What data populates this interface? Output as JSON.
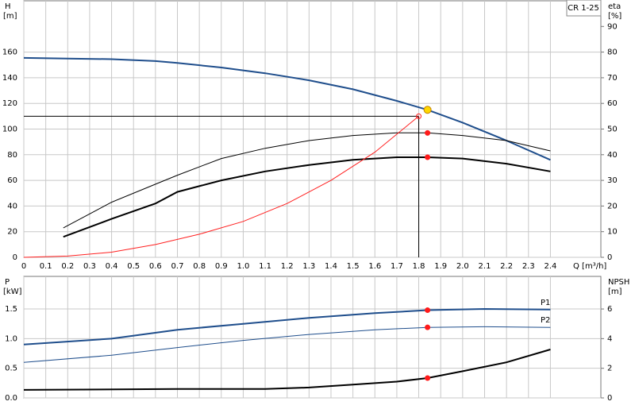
{
  "chart_data": [
    {
      "type": "line",
      "model_label": "CR 1-25",
      "ylabel": "H",
      "ylabel_unit": "[m]",
      "y2label": "eta",
      "y2label_unit": "[%]",
      "xlabel": "Q [m³/h]",
      "xlim": [
        0,
        2.63
      ],
      "xticks": [
        0,
        0.1,
        0.2,
        0.3,
        0.4,
        0.5,
        0.6,
        0.7,
        0.8,
        0.9,
        {
          "value": 1,
          "label": "1.0"
        },
        1.1,
        1.2,
        1.3,
        1.4,
        1.5,
        1.6,
        1.7,
        1.8,
        1.9,
        {
          "value": 2,
          "label": "2.0"
        },
        2.1,
        2.2,
        2.3,
        2.4
      ],
      "ylim": [
        0,
        200
      ],
      "yticks": [
        0,
        20,
        40,
        60,
        80,
        100,
        120,
        140,
        160
      ],
      "y2lim": [
        0,
        100
      ],
      "y2ticks": [
        0,
        10,
        20,
        30,
        40,
        50,
        60,
        70,
        80,
        90
      ],
      "grid": true,
      "series": [
        {
          "color": "#1f4e8c",
          "width": 2,
          "x": [
            0,
            0.2,
            0.4,
            0.6,
            0.7,
            0.9,
            1.1,
            1.3,
            1.5,
            1.7,
            1.84,
            2.0,
            2.2,
            2.4
          ],
          "values": [
            155.5,
            155,
            154.5,
            153,
            151.5,
            148,
            143.5,
            138,
            131,
            122,
            115,
            105,
            91,
            76
          ]
        },
        {
          "color": "#000000",
          "width": 1,
          "axis": "y2",
          "x": [
            0.18,
            0.4,
            0.6,
            0.7,
            0.9,
            1.1,
            1.3,
            1.5,
            1.7,
            1.84,
            2.0,
            2.2,
            2.4
          ],
          "values": [
            11.5,
            21.5,
            28.5,
            32,
            38.5,
            42.5,
            45.5,
            47.5,
            48.5,
            48.5,
            47.5,
            45.5,
            41.5
          ]
        },
        {
          "color": "#000000",
          "width": 2,
          "axis": "y2",
          "x": [
            0.18,
            0.4,
            0.6,
            0.7,
            0.9,
            1.1,
            1.3,
            1.5,
            1.7,
            1.84,
            2.0,
            2.2,
            2.4
          ],
          "values": [
            8,
            15,
            21,
            25.5,
            30,
            33.5,
            36,
            38,
            39,
            39,
            38.5,
            36.5,
            33.5
          ]
        },
        {
          "color": "#ff2020",
          "width": 1,
          "x": [
            0,
            0.2,
            0.4,
            0.6,
            0.8,
            1.0,
            1.2,
            1.4,
            1.6,
            1.8
          ],
          "values": [
            0,
            1,
            4,
            10,
            18,
            28,
            42,
            60,
            82,
            110
          ]
        }
      ],
      "crosshair": {
        "x": 1.8,
        "y": 110
      },
      "markers": [
        {
          "x": 1.84,
          "y": 115,
          "color": "#ffd700"
        },
        {
          "x": 1.84,
          "y": 48.5,
          "axis": "y2",
          "color": "#ff1a1a"
        },
        {
          "x": 1.84,
          "y": 39,
          "axis": "y2",
          "color": "#ff1a1a"
        }
      ]
    },
    {
      "type": "line",
      "ylabel": "P",
      "ylabel_unit": "[kW]",
      "y2label": "NPSH",
      "y2label_unit": "[m]",
      "xlim": [
        0,
        2.63
      ],
      "ylim": [
        0,
        2.05
      ],
      "yticks": [
        {
          "value": 0,
          "label": "0.0"
        },
        0.5,
        {
          "value": 1,
          "label": "1.0"
        },
        1.5
      ],
      "y2lim": [
        0,
        8.2
      ],
      "y2ticks": [
        0,
        2,
        4,
        6
      ],
      "grid": true,
      "series": [
        {
          "name": "P1",
          "color": "#1f4e8c",
          "width": 2,
          "x": [
            0,
            0.4,
            0.7,
            1.0,
            1.3,
            1.6,
            1.84,
            2.1,
            2.4
          ],
          "values": [
            0.9,
            1.0,
            1.15,
            1.25,
            1.35,
            1.43,
            1.48,
            1.5,
            1.49
          ]
        },
        {
          "name": "P2",
          "color": "#1f4e8c",
          "width": 1,
          "x": [
            0,
            0.4,
            0.7,
            1.0,
            1.3,
            1.6,
            1.84,
            2.1,
            2.4
          ],
          "values": [
            0.6,
            0.72,
            0.85,
            0.97,
            1.07,
            1.15,
            1.19,
            1.2,
            1.19
          ]
        },
        {
          "color": "#000000",
          "width": 2,
          "axis": "y2",
          "x": [
            0,
            0.7,
            1.1,
            1.3,
            1.5,
            1.7,
            1.84,
            2.0,
            2.2,
            2.4
          ],
          "values": [
            0.54,
            0.6,
            0.6,
            0.7,
            0.9,
            1.1,
            1.34,
            1.8,
            2.4,
            3.27
          ]
        }
      ],
      "markers": [
        {
          "x": 1.84,
          "y": 1.48,
          "color": "#ff1a1a"
        },
        {
          "x": 1.84,
          "y": 1.19,
          "color": "#ff1a1a"
        },
        {
          "x": 1.84,
          "y": 1.34,
          "axis": "y2",
          "color": "#ff1a1a"
        }
      ]
    }
  ]
}
